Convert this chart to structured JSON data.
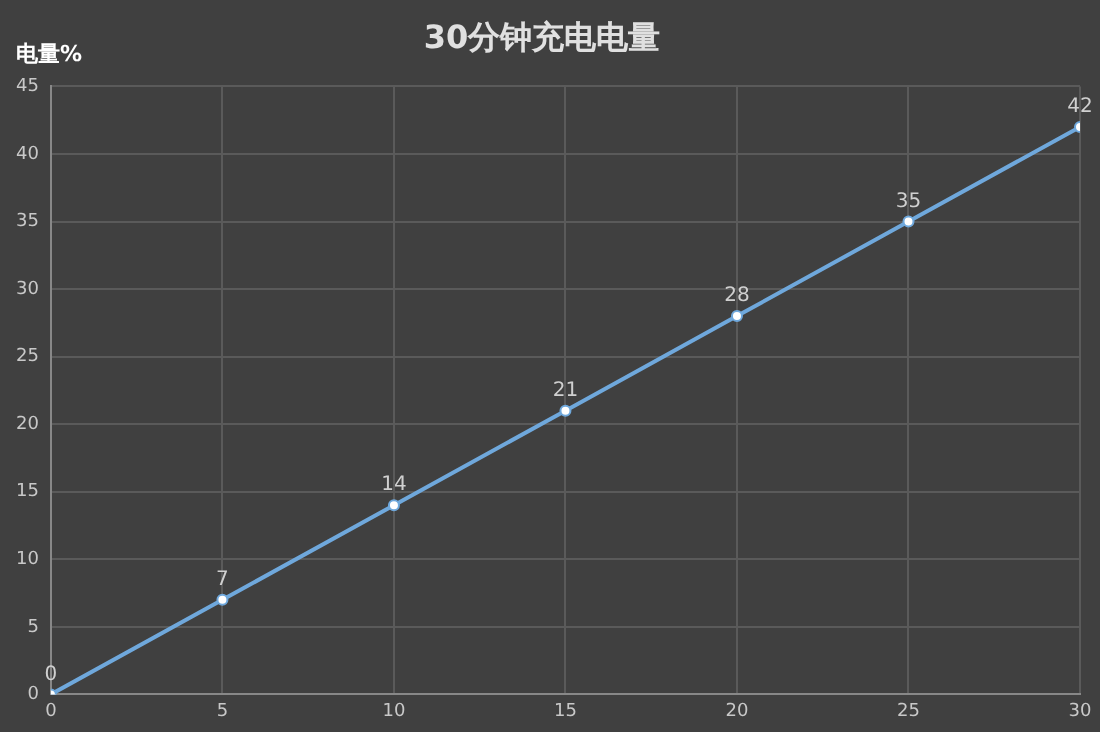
{
  "chart_data": {
    "type": "line",
    "title": "30分钟充电电量",
    "ylabel": "电量%",
    "x": [
      0,
      5,
      10,
      15,
      20,
      25,
      30
    ],
    "series": [
      {
        "color": "#6fa8dc",
        "values": [
          0,
          7,
          14,
          21,
          28,
          35,
          42
        ]
      }
    ],
    "xlim": [
      0,
      30
    ],
    "xticks": [
      0,
      5,
      10,
      15,
      20,
      25,
      30
    ],
    "ylim": [
      0,
      45
    ],
    "yticks": [
      0,
      5,
      10,
      15,
      20,
      25,
      30,
      35,
      40,
      45
    ],
    "grid": true,
    "marker": "circle",
    "data_labels": true
  }
}
